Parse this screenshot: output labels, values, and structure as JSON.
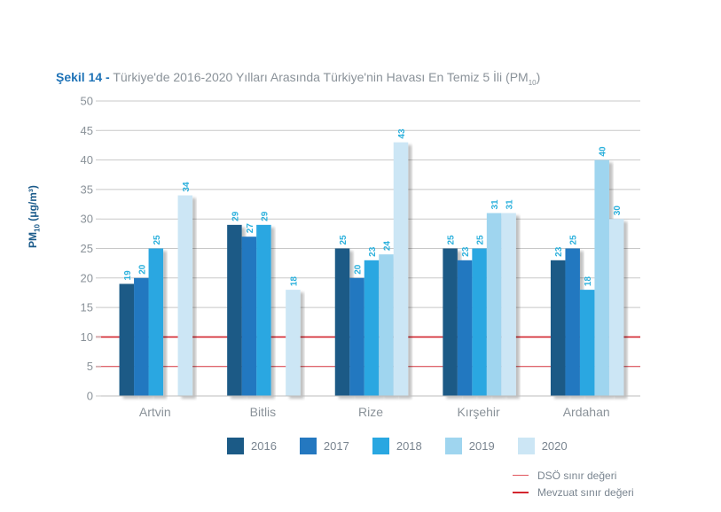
{
  "title": {
    "lead": "Şekil 14 -",
    "text": "Türkiye'de 2016-2020 Yılları Arasında Türkiye'nin Havası En Temiz 5 İli (PM",
    "sub": "10",
    "close": ")"
  },
  "ylabel": {
    "main": "PM",
    "sub": "10",
    "unit": " (μg/m³)"
  },
  "colors": {
    "2016": "#1b5a86",
    "2017": "#2478c0",
    "2018": "#29a7e1",
    "2019": "#9fd5ef",
    "2020": "#cce6f5",
    "label": "#2bb0dc",
    "grid": "#c8c8c8",
    "dso": "#e0555c",
    "mevzuat": "#d3262f",
    "axis_text": "#8a9299"
  },
  "legend": [
    {
      "key": "2016",
      "label": "2016"
    },
    {
      "key": "2017",
      "label": "2017"
    },
    {
      "key": "2018",
      "label": "2018"
    },
    {
      "key": "2019",
      "label": "2019"
    },
    {
      "key": "2020",
      "label": "2020"
    }
  ],
  "ref_legend": [
    {
      "key": "dso",
      "label": "DSÖ sınır değeri"
    },
    {
      "key": "mevzuat",
      "label": "Mevzuat sınır değeri"
    }
  ],
  "chart_data": {
    "type": "bar",
    "title": "Şekil 14 - Türkiye'de 2016-2020 Yılları Arasında Türkiye'nin Havası En Temiz 5 İli (PM10)",
    "xlabel": "",
    "ylabel": "PM10 (μg/m³)",
    "ylim": [
      0,
      50
    ],
    "yticks": [
      0,
      5,
      10,
      15,
      20,
      25,
      30,
      35,
      40,
      45,
      50
    ],
    "grid": true,
    "legend_position": "bottom",
    "categories": [
      "Artvin",
      "Bitlis",
      "Rize",
      "Kırşehir",
      "Ardahan"
    ],
    "series": [
      {
        "name": "2016",
        "values": [
          19,
          29,
          25,
          25,
          23
        ]
      },
      {
        "name": "2017",
        "values": [
          20,
          27,
          20,
          23,
          25
        ]
      },
      {
        "name": "2018",
        "values": [
          25,
          29,
          23,
          25,
          18
        ]
      },
      {
        "name": "2019",
        "values": [
          null,
          null,
          24,
          31,
          40
        ]
      },
      {
        "name": "2020",
        "values": [
          34,
          18,
          43,
          31,
          30
        ]
      }
    ],
    "reference_lines": [
      {
        "name": "DSÖ sınır değeri",
        "value": 5
      },
      {
        "name": "Mevzuat sınır değeri",
        "value": 10
      }
    ]
  }
}
